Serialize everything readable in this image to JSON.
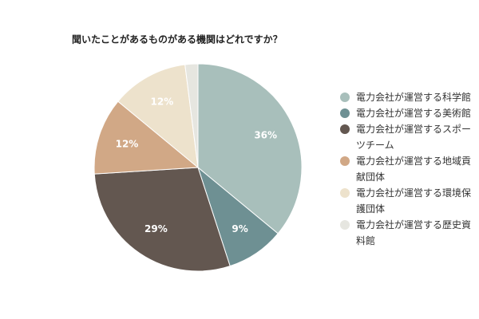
{
  "chart_data": {
    "type": "pie",
    "title": "聞いたことがあるものがある機関はどれですか？",
    "categories": [
      "電力会社が運営する科学館",
      "電力会社が運営する美術館",
      "電力会社が運営するスポーツチーム",
      "電力会社が運営する地域貢献団体",
      "電力会社が運営する環境保護団体",
      "電力会社が運営する歴史資料館"
    ],
    "values": [
      36,
      9,
      29,
      12,
      12,
      2
    ],
    "value_labels": [
      "36%",
      "9%",
      "29%",
      "12%",
      "12%",
      null
    ],
    "colors": [
      "#a8bfbb",
      "#6e9093",
      "#635750",
      "#d1a886",
      "#ede2cc",
      "#e6e6e0"
    ],
    "legend": "right"
  }
}
